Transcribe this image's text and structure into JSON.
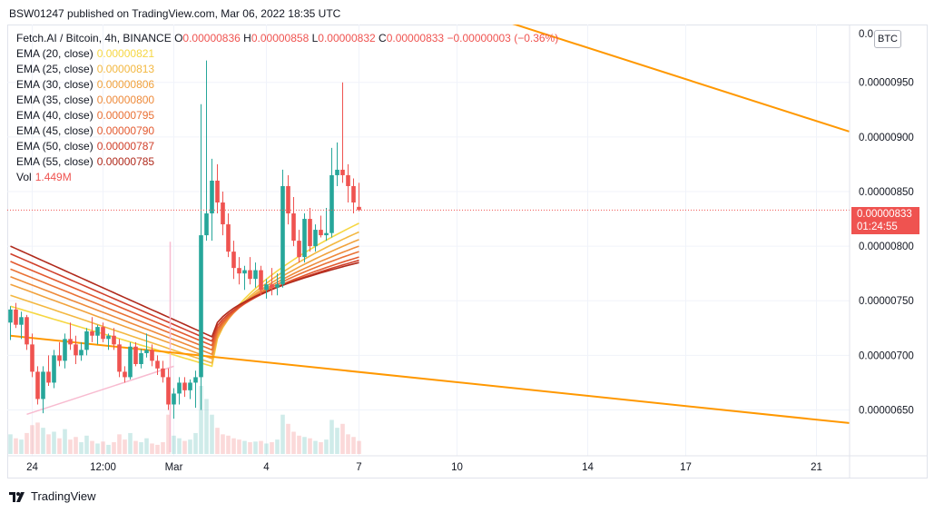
{
  "header": {
    "author": "BSW01247",
    "published_text": "published on TradingView.com, Mar 06, 2022 18:35 UTC"
  },
  "legend": {
    "symbol": "Fetch.AI / Bitcoin, 4h, BINANCE",
    "ohlc": [
      {
        "k": "O",
        "v": "0.00000836"
      },
      {
        "k": "H",
        "v": "0.00000858"
      },
      {
        "k": "L",
        "v": "0.00000832"
      },
      {
        "k": "C",
        "v": "0.00000833"
      }
    ],
    "change": "−0.00000003 (−0.36%)",
    "emas": [
      {
        "label": "EMA (20, close)",
        "value": "0.00000821",
        "color": "#f6d743"
      },
      {
        "label": "EMA (25, close)",
        "value": "0.00000813",
        "color": "#f3b841"
      },
      {
        "label": "EMA (30, close)",
        "value": "0.00000806",
        "color": "#f1a23d"
      },
      {
        "label": "EMA (35, close)",
        "value": "0.00000800",
        "color": "#ee8a3a"
      },
      {
        "label": "EMA (40, close)",
        "value": "0.00000795",
        "color": "#e97135"
      },
      {
        "label": "EMA (45, close)",
        "value": "0.00000790",
        "color": "#e35a30"
      },
      {
        "label": "EMA (50, close)",
        "value": "0.00000787",
        "color": "#d0402b"
      },
      {
        "label": "EMA (55, close)",
        "value": "0.00000785",
        "color": "#b02a1c"
      }
    ],
    "volume": {
      "label": "Vol",
      "value": "1.449M"
    }
  },
  "price_tag": {
    "price": "0.00000833",
    "countdown": "01:24:55"
  },
  "currency_badge": "BTC",
  "footer": {
    "brand": "TradingView"
  },
  "colors": {
    "up": "#26a69a",
    "down": "#ef5350",
    "trendline": "#ff9800",
    "support": "#f8bbd0"
  },
  "chart_data": {
    "type": "candlestick",
    "symbol": "Fetch.AI / Bitcoin",
    "interval": "4h",
    "exchange": "BINANCE",
    "y_ticks": [
      "0.00000950",
      "0.00000900",
      "0.00000850",
      "0.00000800",
      "0.00000750",
      "0.00000700",
      "0.00000650"
    ],
    "y_tick_values": [
      9.5e-06,
      9e-06,
      8.5e-06,
      8e-06,
      7.5e-06,
      7e-06,
      6.5e-06
    ],
    "y_top_label": "0.0",
    "y_range": [
      6.08e-06,
      1.003e-05
    ],
    "x_ticks": [
      {
        "label": "24",
        "bar": 4
      },
      {
        "label": "12:00",
        "bar": 17
      },
      {
        "label": "Mar",
        "bar": 30
      },
      {
        "label": "4",
        "bar": 47
      },
      {
        "label": "7",
        "bar": 64
      },
      {
        "label": "10",
        "bar": 82
      },
      {
        "label": "14",
        "bar": 106
      },
      {
        "label": "17",
        "bar": 124
      },
      {
        "label": "21",
        "bar": 148
      }
    ],
    "candles": [
      [
        7.3e-06,
        7.45e-06,
        7.14e-06,
        7.42e-06,
        150
      ],
      [
        7.42e-06,
        7.48e-06,
        7.25e-06,
        7.28e-06,
        120
      ],
      [
        7.28e-06,
        7.4e-06,
        7.15e-06,
        7.35e-06,
        110
      ],
      [
        7.35e-06,
        7.37e-06,
        7.05e-06,
        7.1e-06,
        160
      ],
      [
        7.1e-06,
        7.2e-06,
        6.8e-06,
        6.85e-06,
        220
      ],
      [
        6.85e-06,
        6.9e-06,
        6.55e-06,
        6.6e-06,
        240
      ],
      [
        6.6e-06,
        6.9e-06,
        6.47e-06,
        6.85e-06,
        200
      ],
      [
        6.85e-06,
        7e-06,
        6.72e-06,
        6.75e-06,
        150
      ],
      [
        6.75e-06,
        7.05e-06,
        6.7e-06,
        7e-06,
        170
      ],
      [
        7e-06,
        7.12e-06,
        6.9e-06,
        6.95e-06,
        120
      ],
      [
        6.95e-06,
        7.2e-06,
        6.88e-06,
        7.15e-06,
        190
      ],
      [
        7.15e-06,
        7.3e-06,
        7.05e-06,
        7.1e-06,
        110
      ],
      [
        7.1e-06,
        7.18e-06,
        6.92e-06,
        7e-06,
        130
      ],
      [
        7e-06,
        7.12e-06,
        6.95e-06,
        7.05e-06,
        90
      ],
      [
        7.05e-06,
        7.25e-06,
        7e-06,
        7.22e-06,
        140
      ],
      [
        7.22e-06,
        7.35e-06,
        7.12e-06,
        7.18e-06,
        100
      ],
      [
        7.18e-06,
        7.28e-06,
        7.1e-06,
        7.26e-06,
        80
      ],
      [
        7.26e-06,
        7.3e-06,
        7.12e-06,
        7.15e-06,
        95
      ],
      [
        7.15e-06,
        7.2e-06,
        7.05e-06,
        7.18e-06,
        70
      ],
      [
        7.18e-06,
        7.25e-06,
        7.05e-06,
        7.1e-06,
        90
      ],
      [
        7.1e-06,
        7.15e-06,
        6.8e-06,
        6.85e-06,
        150
      ],
      [
        6.85e-06,
        6.9e-06,
        6.75e-06,
        6.8e-06,
        110
      ],
      [
        6.8e-06,
        7.12e-06,
        6.78e-06,
        7.08e-06,
        160
      ],
      [
        7.08e-06,
        7.12e-06,
        6.9e-06,
        6.92e-06,
        100
      ],
      [
        6.92e-06,
        7.06e-06,
        6.88e-06,
        7.02e-06,
        90
      ],
      [
        7.02e-06,
        7.2e-06,
        6.98e-06,
        7.05e-06,
        120
      ],
      [
        7.05e-06,
        7.1e-06,
        6.9e-06,
        6.95e-06,
        80
      ],
      [
        6.95e-06,
        7e-06,
        6.82e-06,
        6.88e-06,
        70
      ],
      [
        6.88e-06,
        6.95e-06,
        6.75e-06,
        6.8e-06,
        90
      ],
      [
        6.8e-06,
        6.88e-06,
        6.5e-06,
        6.55e-06,
        300
      ],
      [
        6.55e-06,
        6.7e-06,
        6.42e-06,
        6.65e-06,
        140
      ],
      [
        6.65e-06,
        6.8e-06,
        6.55e-06,
        6.75e-06,
        120
      ],
      [
        6.75e-06,
        6.8e-06,
        6.62e-06,
        6.68e-06,
        100
      ],
      [
        6.68e-06,
        6.78e-06,
        6.6e-06,
        6.75e-06,
        110
      ],
      [
        6.75e-06,
        6.86e-06,
        6.52e-06,
        6.8e-06,
        160
      ],
      [
        6.8e-06,
        9.3e-06,
        6.5e-06,
        8.1e-06,
        520
      ],
      [
        8.1e-06,
        9.7e-06,
        8.05e-06,
        8.3e-06,
        420
      ],
      [
        8.3e-06,
        8.8e-06,
        8.05e-06,
        8.6e-06,
        300
      ],
      [
        8.6e-06,
        8.75e-06,
        8.3e-06,
        8.4e-06,
        200
      ],
      [
        8.4e-06,
        8.5e-06,
        8.1e-06,
        8.2e-06,
        150
      ],
      [
        8.2e-06,
        8.3e-06,
        7.9e-06,
        7.95e-06,
        140
      ],
      [
        7.95e-06,
        8.05e-06,
        7.7e-06,
        7.8e-06,
        120
      ],
      [
        7.8e-06,
        7.9e-06,
        7.65e-06,
        7.75e-06,
        110
      ],
      [
        7.75e-06,
        7.82e-06,
        7.6e-06,
        7.78e-06,
        100
      ],
      [
        7.78e-06,
        7.9e-06,
        7.65e-06,
        7.7e-06,
        90
      ],
      [
        7.7e-06,
        7.85e-06,
        7.62e-06,
        7.78e-06,
        95
      ],
      [
        7.78e-06,
        7.82e-06,
        7.55e-06,
        7.6e-06,
        100
      ],
      [
        7.6e-06,
        7.7e-06,
        7.52e-06,
        7.65e-06,
        80
      ],
      [
        7.65e-06,
        7.8e-06,
        7.55e-06,
        7.62e-06,
        90
      ],
      [
        7.62e-06,
        7.75e-06,
        7.55e-06,
        7.65e-06,
        110
      ],
      [
        7.65e-06,
        8.7e-06,
        7.62e-06,
        8.55e-06,
        300
      ],
      [
        8.55e-06,
        8.65e-06,
        8.2e-06,
        8.3e-06,
        230
      ],
      [
        8.3e-06,
        8.45e-06,
        8e-06,
        8.05e-06,
        170
      ],
      [
        8.05e-06,
        8.15e-06,
        7.85e-06,
        7.9e-06,
        140
      ],
      [
        7.9e-06,
        8.3e-06,
        7.85e-06,
        8.25e-06,
        130
      ],
      [
        8.25e-06,
        8.35e-06,
        7.95e-06,
        8e-06,
        120
      ],
      [
        8e-06,
        8.2e-06,
        7.95e-06,
        8.15e-06,
        100
      ],
      [
        8.15e-06,
        8.28e-06,
        8.08e-06,
        8.1e-06,
        90
      ],
      [
        8.1e-06,
        8.35e-06,
        8.05e-06,
        8.12e-06,
        110
      ],
      [
        8.12e-06,
        8.9e-06,
        8.08e-06,
        8.65e-06,
        260
      ],
      [
        8.65e-06,
        8.95e-06,
        8.55e-06,
        8.7e-06,
        200
      ],
      [
        8.7e-06,
        9.5e-06,
        8.58e-06,
        8.65e-06,
        230
      ],
      [
        8.65e-06,
        8.75e-06,
        8.4e-06,
        8.55e-06,
        150
      ],
      [
        8.55e-06,
        8.62e-06,
        8.3e-06,
        8.4e-06,
        130
      ],
      [
        8.36e-06,
        8.58e-06,
        8.32e-06,
        8.33e-06,
        100
      ]
    ],
    "emas": [
      {
        "name": "EMA (20, close)",
        "start": 7.45e-06,
        "min": 6.9e-06,
        "end": 8.21e-06
      },
      {
        "name": "EMA (25, close)",
        "start": 7.55e-06,
        "min": 6.93e-06,
        "end": 8.13e-06
      },
      {
        "name": "EMA (30, close)",
        "start": 7.65e-06,
        "min": 6.97e-06,
        "end": 8.06e-06
      },
      {
        "name": "EMA (35, close)",
        "start": 7.72e-06,
        "min": 7.01e-06,
        "end": 8e-06
      },
      {
        "name": "EMA (40, close)",
        "start": 7.79e-06,
        "min": 7.05e-06,
        "end": 7.95e-06
      },
      {
        "name": "EMA (45, close)",
        "start": 7.86e-06,
        "min": 7.09e-06,
        "end": 7.9e-06
      },
      {
        "name": "EMA (50, close)",
        "start": 7.93e-06,
        "min": 7.13e-06,
        "end": 7.87e-06
      },
      {
        "name": "EMA (55, close)",
        "start": 8e-06,
        "min": 7.17e-06,
        "end": 7.85e-06
      }
    ],
    "volume_max": 520,
    "trendlines": [
      {
        "name": "upper-resistance",
        "from": [
          32,
          1.1e-05
        ],
        "to": [
          154,
          9.05e-06
        ]
      },
      {
        "name": "lower-resistance",
        "from": [
          0,
          7.18e-06
        ],
        "to": [
          154,
          6.38e-06
        ]
      },
      {
        "name": "support",
        "from": [
          3,
          6.46e-06
        ],
        "to": [
          30,
          6.9e-06
        ]
      }
    ],
    "pink_marker_bar": 29,
    "last_price": 8.33e-06
  }
}
